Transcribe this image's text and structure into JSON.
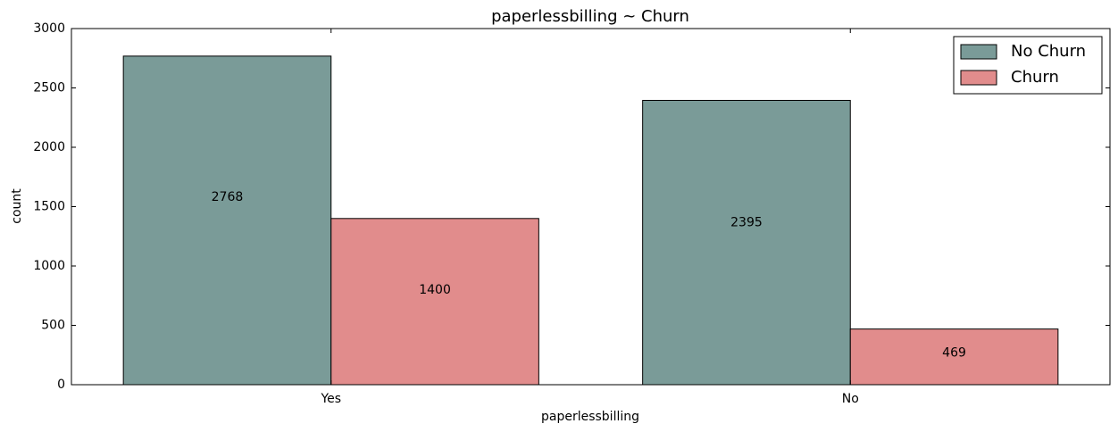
{
  "chart_data": {
    "type": "bar",
    "title": "paperlessbilling ~ Churn",
    "xlabel": "paperlessbilling",
    "ylabel": "count",
    "categories": [
      "Yes",
      "No"
    ],
    "series": [
      {
        "name": "No Churn",
        "color": "#7a9b98",
        "values": [
          2768,
          2395
        ]
      },
      {
        "name": "Churn",
        "color": "#e18c8c",
        "values": [
          1400,
          469
        ]
      }
    ],
    "data_labels": [
      [
        "2768",
        "2395"
      ],
      [
        "1400",
        "469"
      ]
    ],
    "ylim": [
      0,
      3000
    ],
    "yticks": [
      0,
      500,
      1000,
      1500,
      2000,
      2500,
      3000
    ],
    "ytick_labels": [
      "0",
      "500",
      "1000",
      "1500",
      "2000",
      "2500",
      "3000"
    ],
    "grid": false,
    "legend_position": "top-right",
    "edge_color": "#000000"
  }
}
